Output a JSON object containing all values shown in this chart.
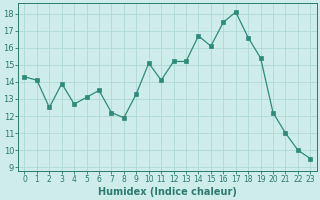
{
  "x": [
    0,
    1,
    2,
    3,
    4,
    5,
    6,
    7,
    8,
    9,
    10,
    11,
    12,
    13,
    14,
    15,
    16,
    17,
    18,
    19,
    20,
    21,
    22,
    23
  ],
  "y": [
    14.3,
    14.1,
    12.5,
    13.9,
    12.7,
    13.1,
    13.5,
    12.2,
    11.9,
    13.3,
    15.1,
    14.1,
    15.2,
    15.2,
    16.7,
    16.1,
    17.5,
    18.1,
    16.6,
    15.4,
    12.2,
    11.0,
    10.0,
    9.5
  ],
  "line_color": "#2e8b7a",
  "marker_color": "#2e8b7a",
  "bg_color": "#ceecea",
  "grid_color": "#aed8d4",
  "xlabel": "Humidex (Indice chaleur)",
  "ylabel_ticks": [
    9,
    10,
    11,
    12,
    13,
    14,
    15,
    16,
    17,
    18
  ],
  "ylim": [
    8.8,
    18.6
  ],
  "xlim": [
    -0.5,
    23.5
  ],
  "font_color": "#2e7a6e",
  "tick_fontsize": 6,
  "xlabel_fontsize": 7
}
